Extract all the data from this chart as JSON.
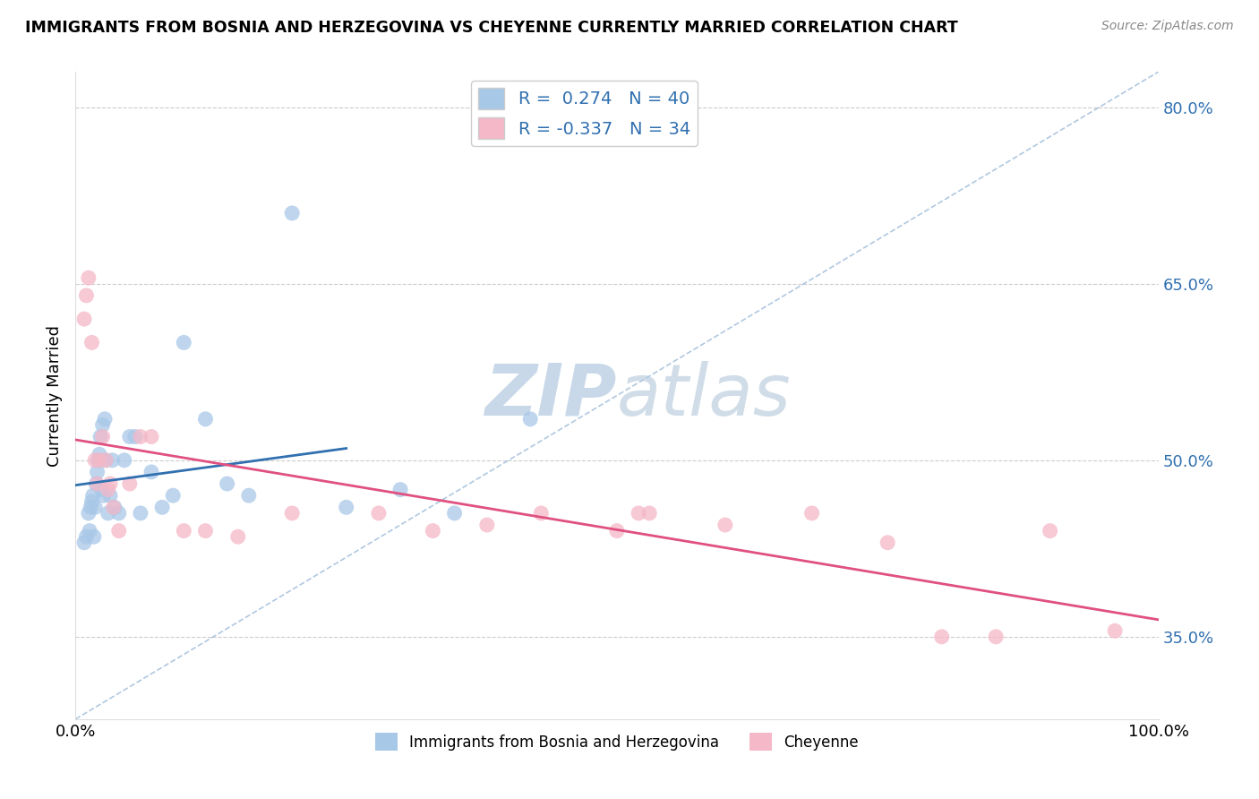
{
  "title": "IMMIGRANTS FROM BOSNIA AND HERZEGOVINA VS CHEYENNE CURRENTLY MARRIED CORRELATION CHART",
  "source": "Source: ZipAtlas.com",
  "ylabel": "Currently Married",
  "xlim": [
    0.0,
    1.0
  ],
  "ylim": [
    0.28,
    0.83
  ],
  "yticks": [
    0.35,
    0.5,
    0.65,
    0.8
  ],
  "ytick_labels": [
    "35.0%",
    "50.0%",
    "65.0%",
    "80.0%"
  ],
  "xtick_labels": [
    "0.0%",
    "100.0%"
  ],
  "legend_R1": " 0.274",
  "legend_N1": "40",
  "legend_R2": "-0.337",
  "legend_N2": "34",
  "color_blue": "#a8c8e8",
  "color_pink": "#f4b8c8",
  "color_line_blue": "#3070b0",
  "color_line_pink": "#e05080",
  "color_dashed": "#b0c8e0",
  "watermark_color": "#c8d8e8",
  "blue_x": [
    0.008,
    0.01,
    0.012,
    0.013,
    0.014,
    0.015,
    0.016,
    0.017,
    0.018,
    0.019,
    0.02,
    0.021,
    0.022,
    0.023,
    0.024,
    0.025,
    0.026,
    0.027,
    0.028,
    0.03,
    0.032,
    0.034,
    0.036,
    0.04,
    0.045,
    0.05,
    0.055,
    0.06,
    0.07,
    0.08,
    0.09,
    0.1,
    0.12,
    0.14,
    0.16,
    0.2,
    0.25,
    0.3,
    0.35,
    0.42
  ],
  "blue_y": [
    0.43,
    0.435,
    0.455,
    0.44,
    0.46,
    0.465,
    0.47,
    0.435,
    0.46,
    0.48,
    0.49,
    0.5,
    0.505,
    0.52,
    0.475,
    0.53,
    0.47,
    0.535,
    0.5,
    0.455,
    0.47,
    0.5,
    0.46,
    0.455,
    0.5,
    0.52,
    0.52,
    0.455,
    0.49,
    0.46,
    0.47,
    0.6,
    0.535,
    0.48,
    0.47,
    0.71,
    0.46,
    0.475,
    0.455,
    0.535
  ],
  "pink_x": [
    0.008,
    0.01,
    0.012,
    0.015,
    0.018,
    0.02,
    0.022,
    0.025,
    0.028,
    0.03,
    0.032,
    0.035,
    0.04,
    0.05,
    0.06,
    0.07,
    0.1,
    0.12,
    0.15,
    0.2,
    0.28,
    0.33,
    0.38,
    0.43,
    0.5,
    0.52,
    0.53,
    0.6,
    0.68,
    0.75,
    0.8,
    0.85,
    0.9,
    0.96
  ],
  "pink_y": [
    0.62,
    0.64,
    0.655,
    0.6,
    0.5,
    0.48,
    0.5,
    0.52,
    0.5,
    0.475,
    0.48,
    0.46,
    0.44,
    0.48,
    0.52,
    0.52,
    0.44,
    0.44,
    0.435,
    0.455,
    0.455,
    0.44,
    0.445,
    0.455,
    0.44,
    0.455,
    0.455,
    0.445,
    0.455,
    0.43,
    0.35,
    0.35,
    0.44,
    0.355
  ]
}
